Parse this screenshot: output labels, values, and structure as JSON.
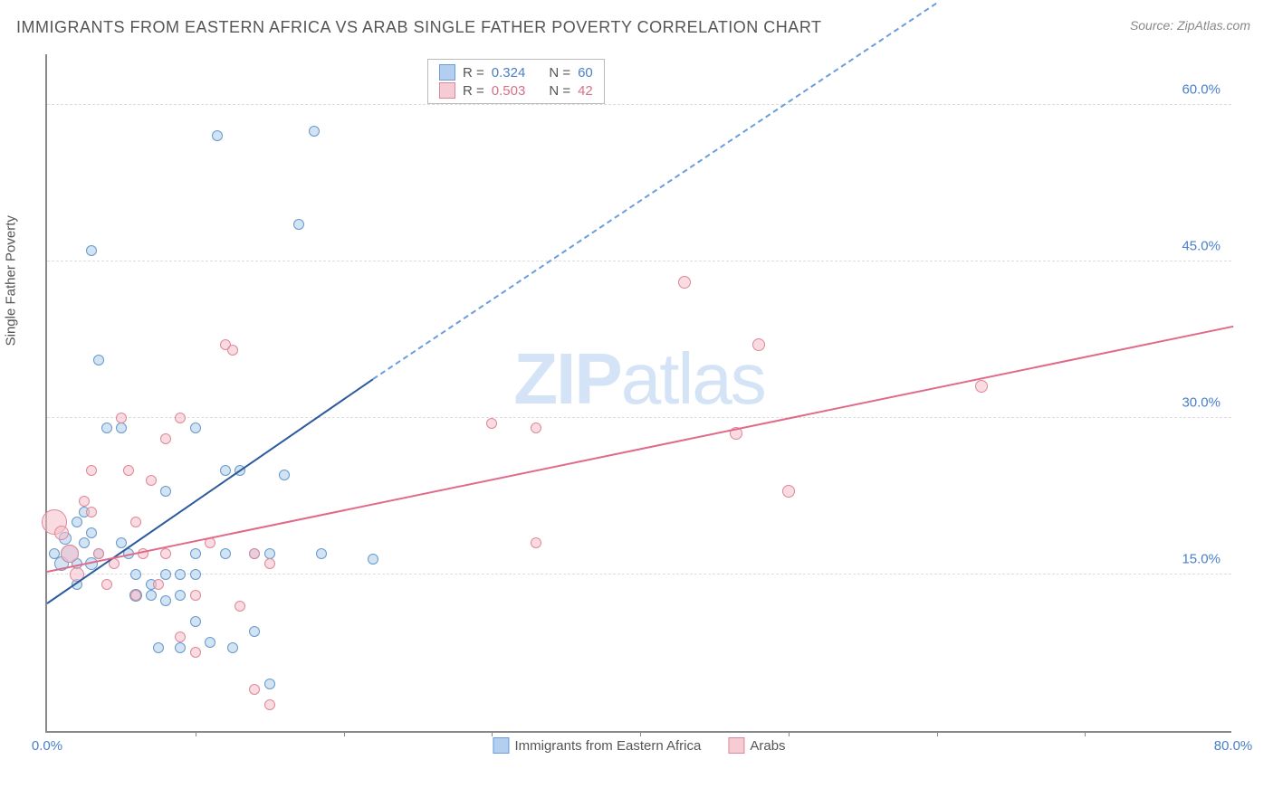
{
  "title": "IMMIGRANTS FROM EASTERN AFRICA VS ARAB SINGLE FATHER POVERTY CORRELATION CHART",
  "source_label": "Source: ZipAtlas.com",
  "y_axis_label": "Single Father Poverty",
  "watermark": {
    "bold": "ZIP",
    "rest": "atlas"
  },
  "chart": {
    "type": "scatter",
    "xlim": [
      0,
      80
    ],
    "ylim": [
      0,
      65
    ],
    "x_ticks": [
      0.0,
      80.0
    ],
    "y_ticks": [
      15.0,
      30.0,
      45.0,
      60.0
    ],
    "x_tick_fmt": [
      "0.0%",
      "80.0%"
    ],
    "y_tick_fmt": [
      "15.0%",
      "30.0%",
      "45.0%",
      "60.0%"
    ],
    "x_minor_ticks": [
      10,
      20,
      30,
      40,
      50,
      60,
      70
    ],
    "grid_color": "#dddddd",
    "background_color": "#ffffff",
    "axis_color": "#888888",
    "tick_label_color": "#4a7fc9",
    "title_fontsize": 18,
    "label_fontsize": 15,
    "tick_fontsize": 15
  },
  "series": [
    {
      "name": "Immigrants from Eastern Africa",
      "short": "blue",
      "fill_color": "#adcceb",
      "stroke_color": "#6699cc",
      "fill_opacity": 0.55,
      "R": "0.324",
      "N": "60",
      "trend": {
        "x1": 0,
        "y1": 12.5,
        "x2_solid": 22,
        "y2_solid": 34,
        "x2_dash": 60,
        "y2_dash": 70,
        "color": "#2d5a9e"
      },
      "points": [
        {
          "x": 0.5,
          "y": 17,
          "r": 6
        },
        {
          "x": 1,
          "y": 16,
          "r": 8
        },
        {
          "x": 1.5,
          "y": 17,
          "r": 10
        },
        {
          "x": 1.2,
          "y": 18.5,
          "r": 7
        },
        {
          "x": 2,
          "y": 16,
          "r": 6
        },
        {
          "x": 2,
          "y": 14,
          "r": 6
        },
        {
          "x": 2.5,
          "y": 18,
          "r": 6
        },
        {
          "x": 3,
          "y": 19,
          "r": 6
        },
        {
          "x": 3,
          "y": 16,
          "r": 7
        },
        {
          "x": 3.5,
          "y": 17,
          "r": 6
        },
        {
          "x": 2,
          "y": 20,
          "r": 6
        },
        {
          "x": 2.5,
          "y": 21,
          "r": 6
        },
        {
          "x": 4,
          "y": 29,
          "r": 6
        },
        {
          "x": 5,
          "y": 29,
          "r": 6
        },
        {
          "x": 3,
          "y": 46,
          "r": 6
        },
        {
          "x": 3.5,
          "y": 35.5,
          "r": 6
        },
        {
          "x": 5,
          "y": 18,
          "r": 6
        },
        {
          "x": 5.5,
          "y": 17,
          "r": 6
        },
        {
          "x": 6,
          "y": 15,
          "r": 6
        },
        {
          "x": 6,
          "y": 13,
          "r": 7
        },
        {
          "x": 7,
          "y": 13,
          "r": 6
        },
        {
          "x": 7,
          "y": 14,
          "r": 6
        },
        {
          "x": 8,
          "y": 15,
          "r": 6
        },
        {
          "x": 7.5,
          "y": 8,
          "r": 6
        },
        {
          "x": 8,
          "y": 23,
          "r": 6
        },
        {
          "x": 8,
          "y": 12.5,
          "r": 6
        },
        {
          "x": 9,
          "y": 8,
          "r": 6
        },
        {
          "x": 9,
          "y": 13,
          "r": 6
        },
        {
          "x": 9,
          "y": 15,
          "r": 6
        },
        {
          "x": 10,
          "y": 15,
          "r": 6
        },
        {
          "x": 10,
          "y": 17,
          "r": 6
        },
        {
          "x": 10,
          "y": 10.5,
          "r": 6
        },
        {
          "x": 10,
          "y": 29,
          "r": 6
        },
        {
          "x": 11,
          "y": 8.5,
          "r": 6
        },
        {
          "x": 11.5,
          "y": 57,
          "r": 6
        },
        {
          "x": 12,
          "y": 17,
          "r": 6
        },
        {
          "x": 12,
          "y": 25,
          "r": 6
        },
        {
          "x": 12.5,
          "y": 8,
          "r": 6
        },
        {
          "x": 13,
          "y": 25,
          "r": 6
        },
        {
          "x": 14,
          "y": 17,
          "r": 6
        },
        {
          "x": 14,
          "y": 9.5,
          "r": 6
        },
        {
          "x": 15,
          "y": 4.5,
          "r": 6
        },
        {
          "x": 15,
          "y": 17,
          "r": 6
        },
        {
          "x": 16,
          "y": 24.5,
          "r": 6
        },
        {
          "x": 17,
          "y": 48.5,
          "r": 6
        },
        {
          "x": 18,
          "y": 57.5,
          "r": 6
        },
        {
          "x": 18.5,
          "y": 17,
          "r": 6
        },
        {
          "x": 22,
          "y": 16.5,
          "r": 6
        }
      ]
    },
    {
      "name": "Arabs",
      "short": "pink",
      "fill_color": "#f5bec8",
      "stroke_color": "#dd8899",
      "fill_opacity": 0.55,
      "R": "0.503",
      "N": "42",
      "trend": {
        "x1": 0,
        "y1": 15.5,
        "x2_solid": 80,
        "y2_solid": 39,
        "color": "#e06a88"
      },
      "points": [
        {
          "x": 0.5,
          "y": 20,
          "r": 14
        },
        {
          "x": 1,
          "y": 19,
          "r": 8
        },
        {
          "x": 1.5,
          "y": 17,
          "r": 10
        },
        {
          "x": 2,
          "y": 15,
          "r": 8
        },
        {
          "x": 2.5,
          "y": 22,
          "r": 6
        },
        {
          "x": 3,
          "y": 21,
          "r": 6
        },
        {
          "x": 3,
          "y": 25,
          "r": 6
        },
        {
          "x": 3.5,
          "y": 17,
          "r": 6
        },
        {
          "x": 4,
          "y": 14,
          "r": 6
        },
        {
          "x": 4.5,
          "y": 16,
          "r": 6
        },
        {
          "x": 5,
          "y": 30,
          "r": 6
        },
        {
          "x": 5.5,
          "y": 25,
          "r": 6
        },
        {
          "x": 6,
          "y": 20,
          "r": 6
        },
        {
          "x": 6,
          "y": 13,
          "r": 6
        },
        {
          "x": 6.5,
          "y": 17,
          "r": 6
        },
        {
          "x": 7,
          "y": 24,
          "r": 6
        },
        {
          "x": 7.5,
          "y": 14,
          "r": 6
        },
        {
          "x": 8,
          "y": 28,
          "r": 6
        },
        {
          "x": 8,
          "y": 17,
          "r": 6
        },
        {
          "x": 9,
          "y": 30,
          "r": 6
        },
        {
          "x": 9,
          "y": 9,
          "r": 6
        },
        {
          "x": 10,
          "y": 13,
          "r": 6
        },
        {
          "x": 10,
          "y": 7.5,
          "r": 6
        },
        {
          "x": 11,
          "y": 18,
          "r": 6
        },
        {
          "x": 12,
          "y": 37,
          "r": 6
        },
        {
          "x": 12.5,
          "y": 36.5,
          "r": 6
        },
        {
          "x": 13,
          "y": 12,
          "r": 6
        },
        {
          "x": 14,
          "y": 17,
          "r": 6
        },
        {
          "x": 14,
          "y": 4,
          "r": 6
        },
        {
          "x": 15,
          "y": 16,
          "r": 6
        },
        {
          "x": 15,
          "y": 2.5,
          "r": 6
        },
        {
          "x": 33,
          "y": 18,
          "r": 6
        },
        {
          "x": 30,
          "y": 29.5,
          "r": 6
        },
        {
          "x": 33,
          "y": 29,
          "r": 6
        },
        {
          "x": 43,
          "y": 43,
          "r": 7
        },
        {
          "x": 46.5,
          "y": 28.5,
          "r": 7
        },
        {
          "x": 48,
          "y": 37,
          "r": 7
        },
        {
          "x": 50,
          "y": 23,
          "r": 7
        },
        {
          "x": 63,
          "y": 33,
          "r": 7
        }
      ]
    }
  ],
  "legend_top": {
    "rows": [
      {
        "swatch": "blue",
        "r_label": "R = ",
        "r_val": "0.324",
        "n_label": "N = ",
        "n_val": "60",
        "val_color": "#4a7fc9"
      },
      {
        "swatch": "pink",
        "r_label": "R = ",
        "r_val": "0.503",
        "n_label": "N = ",
        "n_val": "42",
        "val_color": "#d6708a"
      }
    ]
  },
  "legend_bottom": [
    {
      "swatch": "blue",
      "label": "Immigrants from Eastern Africa"
    },
    {
      "swatch": "pink",
      "label": "Arabs"
    }
  ]
}
